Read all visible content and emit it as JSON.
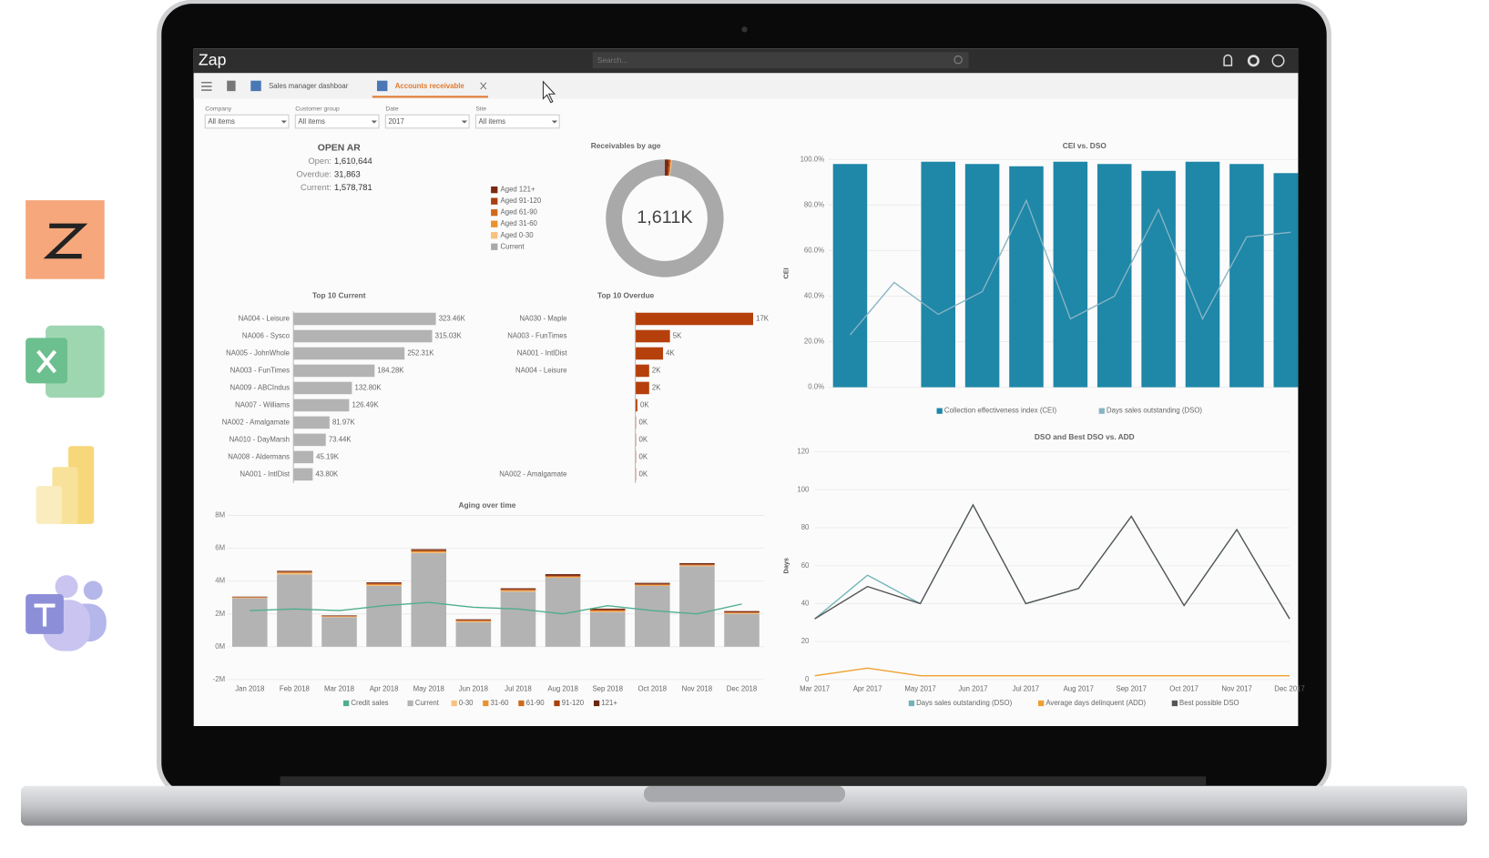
{
  "app": {
    "logo": "Zap",
    "search": "Search..."
  },
  "tabs": [
    "Sales manager dashboar",
    "Accounts receivable"
  ],
  "filters": [
    {
      "label": "Company",
      "value": "All items"
    },
    {
      "label": "Customer group",
      "value": "All items"
    },
    {
      "label": "Date",
      "value": "2017"
    },
    {
      "label": "Site",
      "value": "All items"
    }
  ],
  "open_ar": {
    "title": "OPEN AR",
    "rows": [
      [
        "Open:",
        "1,610,644"
      ],
      [
        "Overdue:",
        "31,863"
      ],
      [
        "Current:",
        "1,578,781"
      ]
    ]
  },
  "chart_data": [
    {
      "type": "pie",
      "title": "Receivables by age",
      "center_label": "1,611K",
      "categories": [
        "Aged 121+",
        "Aged 91-120",
        "Aged 61-90",
        "Aged 31-60",
        "Aged 0-30",
        "Current"
      ],
      "values": [
        17.9,
        5,
        4,
        2,
        3,
        1578.8
      ],
      "colors": [
        "#7a2a10",
        "#a8400f",
        "#cf6a1c",
        "#e8922e",
        "#f6c27f",
        "#a9a9a9"
      ]
    },
    {
      "type": "bar",
      "orientation": "horizontal",
      "title": "Top 10 Current",
      "color": "#b3b3b3",
      "categories": [
        "NA004 - Leisure",
        "NA006 - Sysco",
        "NA005 - JohnWhole",
        "NA003 - FunTimes",
        "NA009 - ABCIndus",
        "NA007 - Williams",
        "NA002 - Amalgamate",
        "NA010 - DayMarsh",
        "NA008 - Aldermans",
        "NA001 - IntlDist"
      ],
      "values": [
        323.46,
        315.03,
        252.31,
        184.28,
        132.8,
        126.49,
        81.97,
        73.44,
        45.19,
        43.8
      ],
      "value_labels": [
        "323.46K",
        "315.03K",
        "252.31K",
        "184.28K",
        "132.80K",
        "126.49K",
        "81.97K",
        "73.44K",
        "45.19K",
        "43.80K"
      ]
    },
    {
      "type": "bar",
      "orientation": "horizontal",
      "title": "Top 10 Overdue",
      "color": "#b5400c",
      "categories": [
        "NA030 - Maple",
        "NA003 - FunTimes",
        "NA001 - IntlDist",
        "NA004 - Leisure",
        null,
        null,
        null,
        null,
        null,
        "NA002 - Amalgamate"
      ],
      "values": [
        17,
        5,
        4,
        2,
        2,
        0.3,
        0.1,
        0.1,
        0.1,
        0.1
      ],
      "value_labels": [
        "17K",
        "5K",
        "4K",
        "2K",
        "2K",
        "0K",
        "0K",
        "0K",
        "0K",
        "0K"
      ]
    },
    {
      "type": "bar",
      "stacked": true,
      "title": "Aging over time",
      "categories": [
        "Jan 2018",
        "Feb 2018",
        "Mar 2018",
        "Apr 2018",
        "May 2018",
        "Jun 2018",
        "Jul 2018",
        "Aug 2018",
        "Sep 2018",
        "Oct 2018",
        "Nov 2018",
        "Dec 2018"
      ],
      "ylim": [
        -2,
        8
      ],
      "yticks": [
        {
          "value": -2,
          "label": "-2M"
        },
        {
          "value": 0,
          "label": "0M"
        },
        {
          "value": 2,
          "label": "2M"
        },
        {
          "value": 4,
          "label": "4M"
        },
        {
          "value": 6,
          "label": "6M"
        },
        {
          "value": 8,
          "label": "8M"
        }
      ],
      "series": [
        {
          "name": "Credit sales",
          "type": "line",
          "color": "#4fae8c",
          "values": [
            2.2,
            2.3,
            2.2,
            2.5,
            2.7,
            2.4,
            2.3,
            2.0,
            2.5,
            2.2,
            2.0,
            2.6
          ]
        },
        {
          "name": "Current",
          "color": "#b3b3b3",
          "values": [
            2.95,
            4.4,
            1.8,
            3.7,
            5.7,
            1.5,
            3.35,
            4.2,
            2.1,
            3.7,
            4.9,
            2.0
          ]
        },
        {
          "name": "0-30",
          "color": "#f6c27f",
          "values": [
            0.02,
            0.08,
            0.02,
            0.05,
            0.05,
            0.04,
            0.04,
            0.03,
            0.04,
            0.03,
            0.03,
            0.03
          ]
        },
        {
          "name": "31-60",
          "color": "#e8922e",
          "values": [
            0.02,
            0.03,
            0.02,
            0.04,
            0.05,
            0.03,
            0.04,
            0.03,
            0.04,
            0.03,
            0.03,
            0.03
          ]
        },
        {
          "name": "61-90",
          "color": "#cf6a1c",
          "values": [
            0.02,
            0.03,
            0.02,
            0.04,
            0.04,
            0.03,
            0.04,
            0.03,
            0.04,
            0.03,
            0.03,
            0.03
          ]
        },
        {
          "name": "91-120",
          "color": "#a8400f",
          "values": [
            0.02,
            0.03,
            0.02,
            0.04,
            0.04,
            0.03,
            0.04,
            0.05,
            0.04,
            0.04,
            0.04,
            0.03
          ]
        },
        {
          "name": "121+",
          "color": "#6b2410",
          "values": [
            0.02,
            0.05,
            0.03,
            0.05,
            0.06,
            0.04,
            0.05,
            0.08,
            0.06,
            0.06,
            0.06,
            0.05
          ]
        }
      ]
    },
    {
      "type": "bar",
      "title": "CEI vs. DSO",
      "ylabel": "CEI",
      "categories": [
        null,
        null,
        null,
        null,
        null,
        null,
        null,
        null,
        null,
        null,
        null
      ],
      "ylim": [
        0,
        100
      ],
      "yticks": [
        {
          "value": 0,
          "label": "0.0%"
        },
        {
          "value": 20,
          "label": "20.0%"
        },
        {
          "value": 40,
          "label": "40.0%"
        },
        {
          "value": 60,
          "label": "60.0%"
        },
        {
          "value": 80,
          "label": "80.0%"
        },
        {
          "value": 100,
          "label": "100.0%"
        }
      ],
      "series": [
        {
          "name": "Collection effectiveness index (CEI)",
          "color": "#1f87a8",
          "values": [
            98,
            null,
            99,
            98,
            97,
            99,
            98,
            95,
            99,
            98,
            94
          ]
        },
        {
          "name": "Days sales outstanding (DSO)",
          "type": "line",
          "color": "#86b4c4",
          "values": [
            23,
            46,
            32,
            42,
            82,
            30,
            40,
            78,
            30,
            66,
            68
          ]
        }
      ]
    },
    {
      "type": "line",
      "title": "DSO and Best DSO vs. ADD",
      "ylabel": "Days",
      "categories": [
        "Mar 2017",
        "Apr 2017",
        "May 2017",
        "Jun 2017",
        "Jul 2017",
        "Aug 2017",
        "Sep 2017",
        "Oct 2017",
        "Nov 2017",
        "Dec 2017"
      ],
      "ylim": [
        0,
        120
      ],
      "yticks": [
        0,
        20,
        40,
        60,
        80,
        100,
        120
      ],
      "series": [
        {
          "name": "Days sales outstanding (DSO)",
          "color": "#6fb3b8",
          "values": [
            32,
            55,
            40,
            92,
            40,
            48,
            86,
            39,
            79,
            32
          ]
        },
        {
          "name": "Average days delinquent (ADD)",
          "color": "#f0a030",
          "values": [
            2,
            6,
            2,
            2,
            2,
            2,
            2,
            2,
            2,
            2
          ]
        },
        {
          "name": "Best possible DSO",
          "color": "#555555",
          "values": [
            32,
            49,
            40,
            92,
            40,
            48,
            86,
            39,
            79,
            32
          ]
        }
      ]
    }
  ]
}
